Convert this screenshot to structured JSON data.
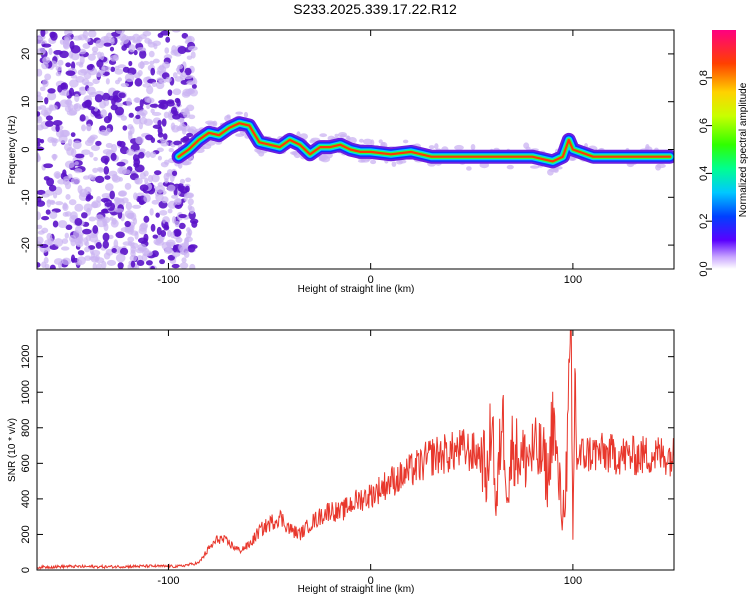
{
  "title": "S233.2025.339.17.22.R12",
  "colors": {
    "axis": "#000000",
    "snr_line": "#e8372c",
    "spectrum_dark": "#5a12c8",
    "spectrum_light": "#cbb3f2"
  },
  "chart_data": [
    {
      "name": "spectrogram",
      "type": "heatmap",
      "xlabel": "Height of straight line (km)",
      "ylabel": "Frequency (Hz)",
      "xlim": [
        -165,
        150
      ],
      "ylim": [
        -25,
        25
      ],
      "xticks": [
        "-100",
        "0",
        "100"
      ],
      "xtick_values": [
        -100,
        0,
        100
      ],
      "yticks": [
        "20",
        "10",
        "0",
        "-10",
        "-20"
      ],
      "ytick_values": [
        20,
        10,
        0,
        -10,
        -20
      ],
      "colorbar": {
        "label": "Normalized spectral amplitude",
        "range": [
          0,
          1
        ],
        "ticks": [
          "0.0",
          "0.2",
          "0.4",
          "0.6",
          "0.8"
        ],
        "tick_values": [
          0.0,
          0.2,
          0.4,
          0.6,
          0.8
        ]
      },
      "noise_region_x": [
        -165,
        -87
      ],
      "tone_ridge": {
        "x": [
          -95,
          -90,
          -85,
          -80,
          -75,
          -70,
          -65,
          -60,
          -55,
          -50,
          -45,
          -40,
          -35,
          -30,
          -25,
          -20,
          -15,
          -10,
          -5,
          0,
          10,
          20,
          30,
          40,
          50,
          60,
          70,
          80,
          90,
          95,
          98,
          100,
          110,
          120,
          130,
          140,
          148
        ],
        "y": [
          -1.5,
          0,
          2,
          3.5,
          3,
          4.5,
          5.5,
          5,
          1.5,
          1,
          0.5,
          2,
          1,
          -1,
          0.5,
          0.5,
          1,
          0,
          -0.5,
          -0.5,
          -1,
          -0.5,
          -1.5,
          -1.5,
          -1.5,
          -1.5,
          -1.5,
          -1.5,
          -2.5,
          -1.5,
          2,
          0,
          -1.5,
          -1.5,
          -1.5,
          -1.5,
          -1.5
        ]
      }
    },
    {
      "name": "snr",
      "type": "line",
      "xlabel": "Height of straight line (km)",
      "ylabel": "SNR (10 * v/v)",
      "xlim": [
        -165,
        150
      ],
      "ylim": [
        0,
        1350
      ],
      "xticks": [
        "-100",
        "0",
        "100"
      ],
      "xtick_values": [
        -100,
        0,
        100
      ],
      "yticks": [
        "0",
        "200",
        "400",
        "600",
        "800",
        "1000",
        "1200"
      ],
      "ytick_values": [
        0,
        200,
        400,
        600,
        800,
        1000,
        1200
      ],
      "series": [
        {
          "name": "SNR",
          "x": [
            -165,
            -150,
            -130,
            -110,
            -95,
            -85,
            -80,
            -75,
            -70,
            -65,
            -60,
            -55,
            -50,
            -45,
            -40,
            -35,
            -30,
            -25,
            -20,
            -15,
            -10,
            -5,
            0,
            5,
            10,
            15,
            20,
            25,
            30,
            35,
            40,
            45,
            50,
            55,
            58,
            60,
            62,
            65,
            68,
            70,
            75,
            80,
            85,
            88,
            90,
            92,
            95,
            97,
            99,
            100,
            101,
            102,
            105,
            110,
            120,
            130,
            140,
            150
          ],
          "y": [
            15,
            20,
            18,
            22,
            20,
            40,
            120,
            180,
            150,
            110,
            140,
            220,
            260,
            300,
            230,
            200,
            260,
            300,
            340,
            320,
            370,
            400,
            420,
            460,
            500,
            520,
            560,
            590,
            640,
            650,
            660,
            680,
            660,
            650,
            500,
            950,
            300,
            900,
            420,
            700,
            620,
            660,
            640,
            500,
            900,
            600,
            300,
            600,
            1300,
            150,
            1100,
            620,
            650,
            660,
            650,
            640,
            650,
            640
          ]
        }
      ]
    }
  ]
}
